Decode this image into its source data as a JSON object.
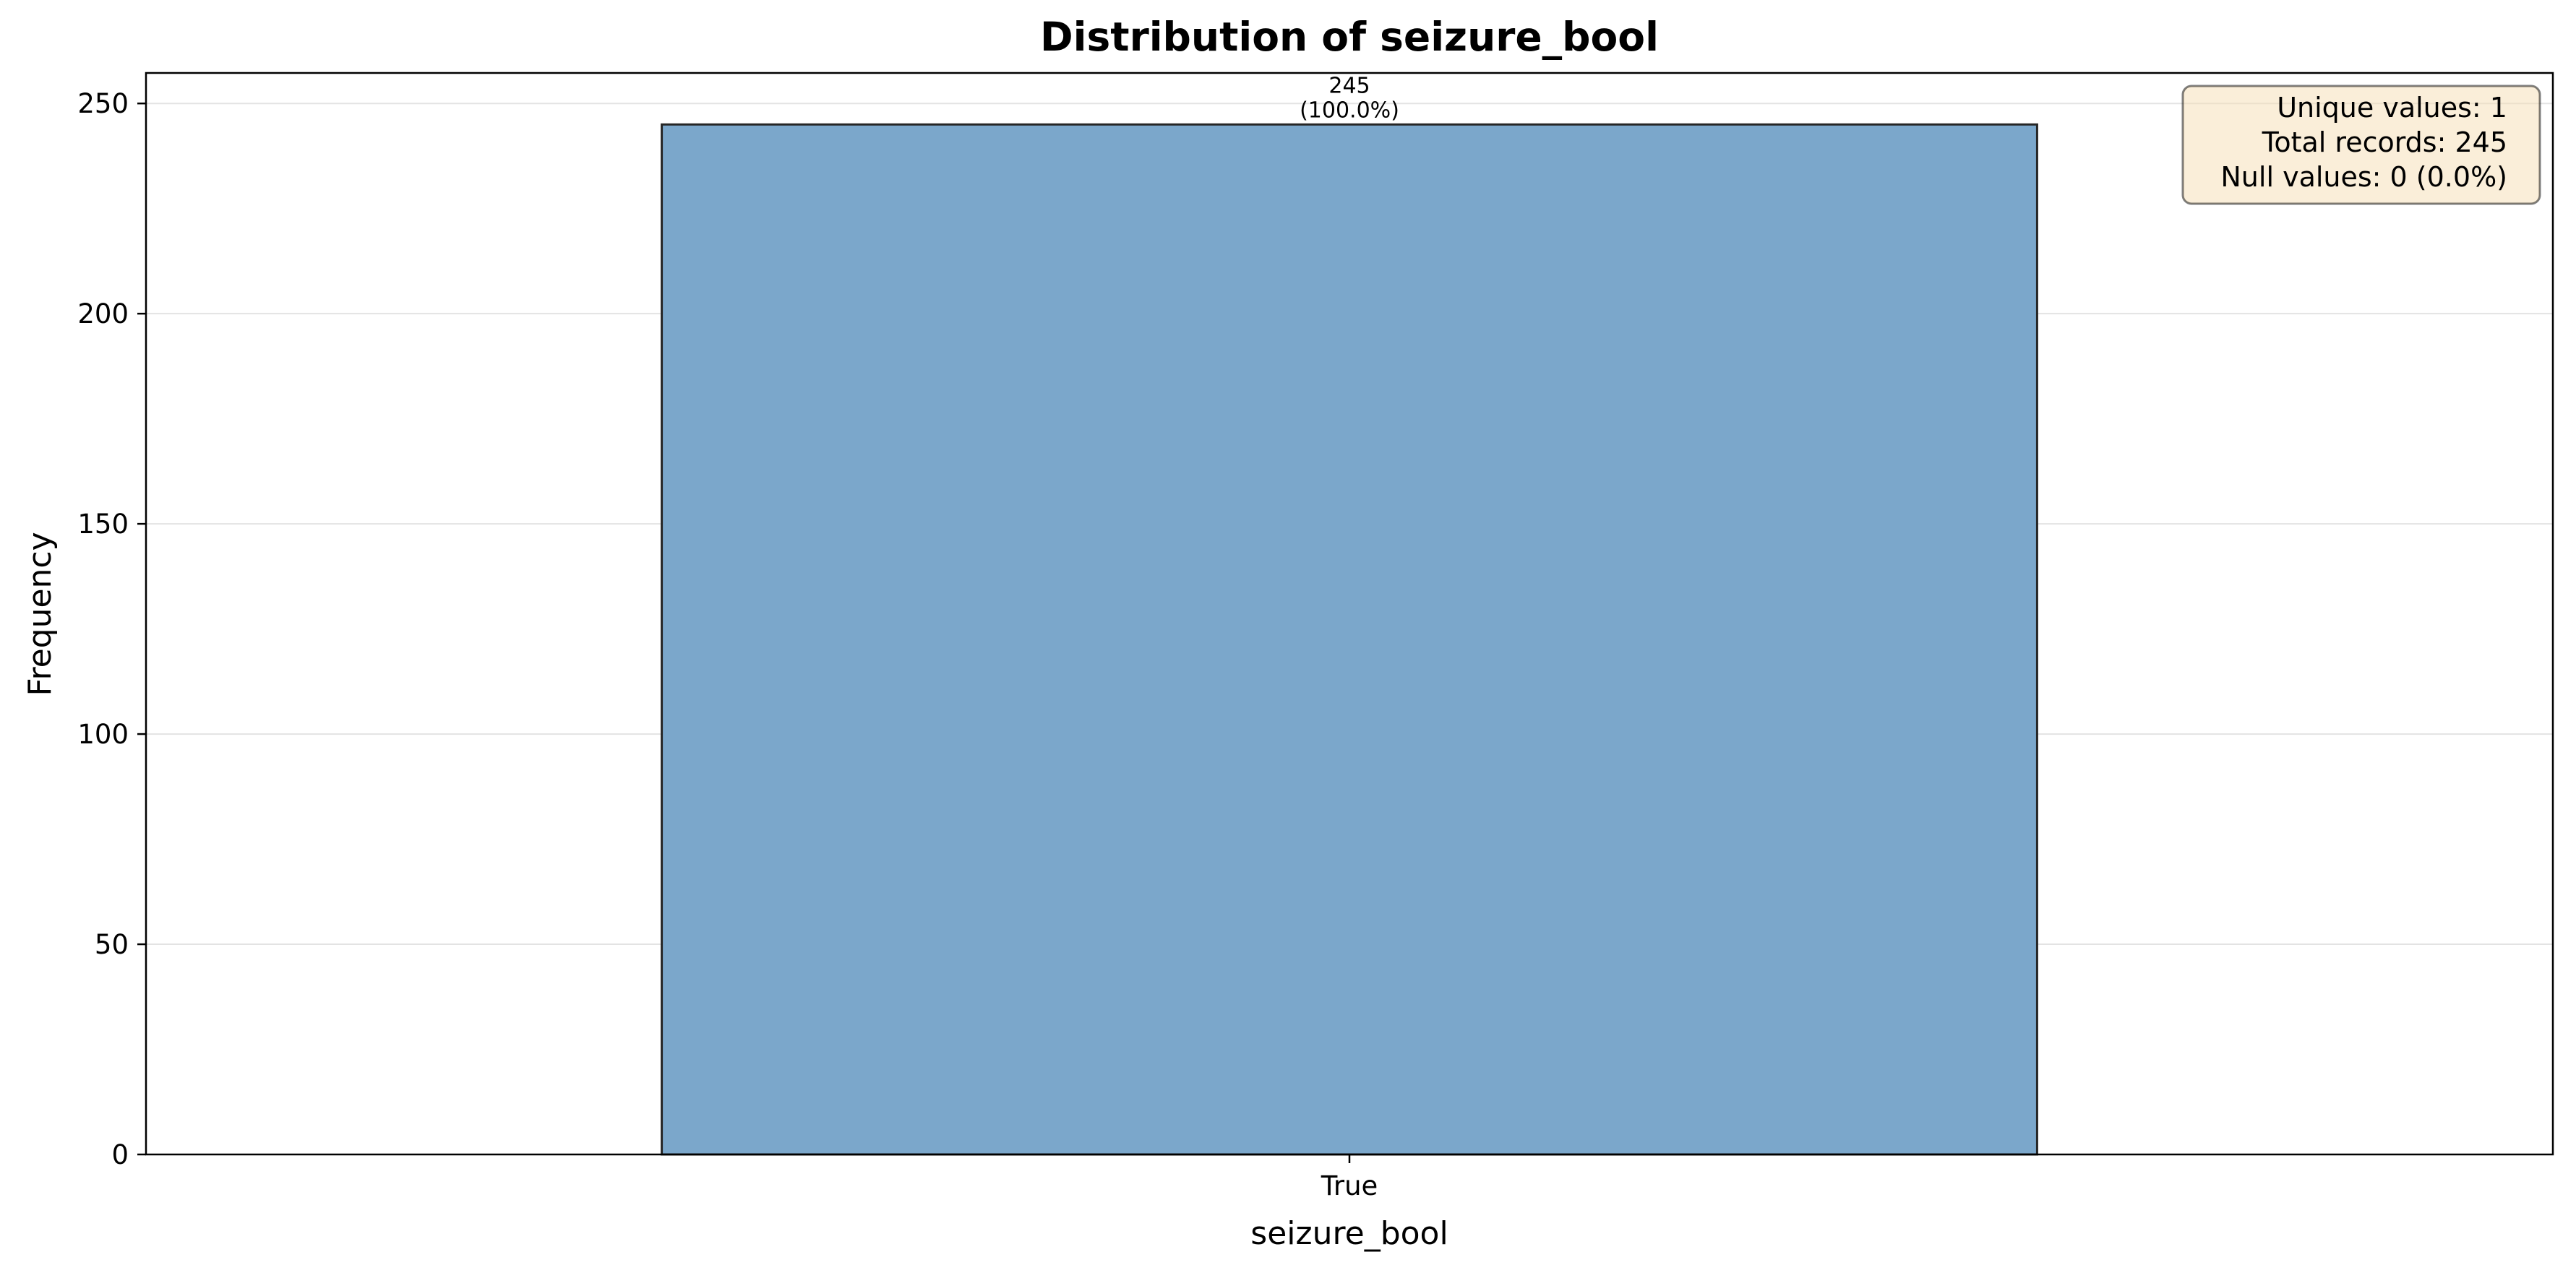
{
  "chart_data": {
    "type": "bar",
    "title": "Distribution of seizure_bool",
    "xlabel": "seizure_bool",
    "ylabel": "Frequency",
    "categories": [
      "True"
    ],
    "values": [
      245
    ],
    "bar_labels": [
      {
        "count": "245",
        "percent": "(100.0%)"
      }
    ],
    "ylim": [
      0,
      257.25
    ],
    "yticks": [
      0,
      50,
      100,
      150,
      200,
      250
    ],
    "ytick_labels": [
      "0",
      "50",
      "100",
      "150",
      "200",
      "250"
    ],
    "grid": "y-axis",
    "bar_color": "#7ba7cb",
    "bar_edge_color": "#262626",
    "stats_box": {
      "placement": "top-right",
      "lines": [
        "Unique values: 1",
        "Total records: 245",
        "Null values: 0 (0.0%)"
      ],
      "background": "#f5deb3"
    }
  }
}
